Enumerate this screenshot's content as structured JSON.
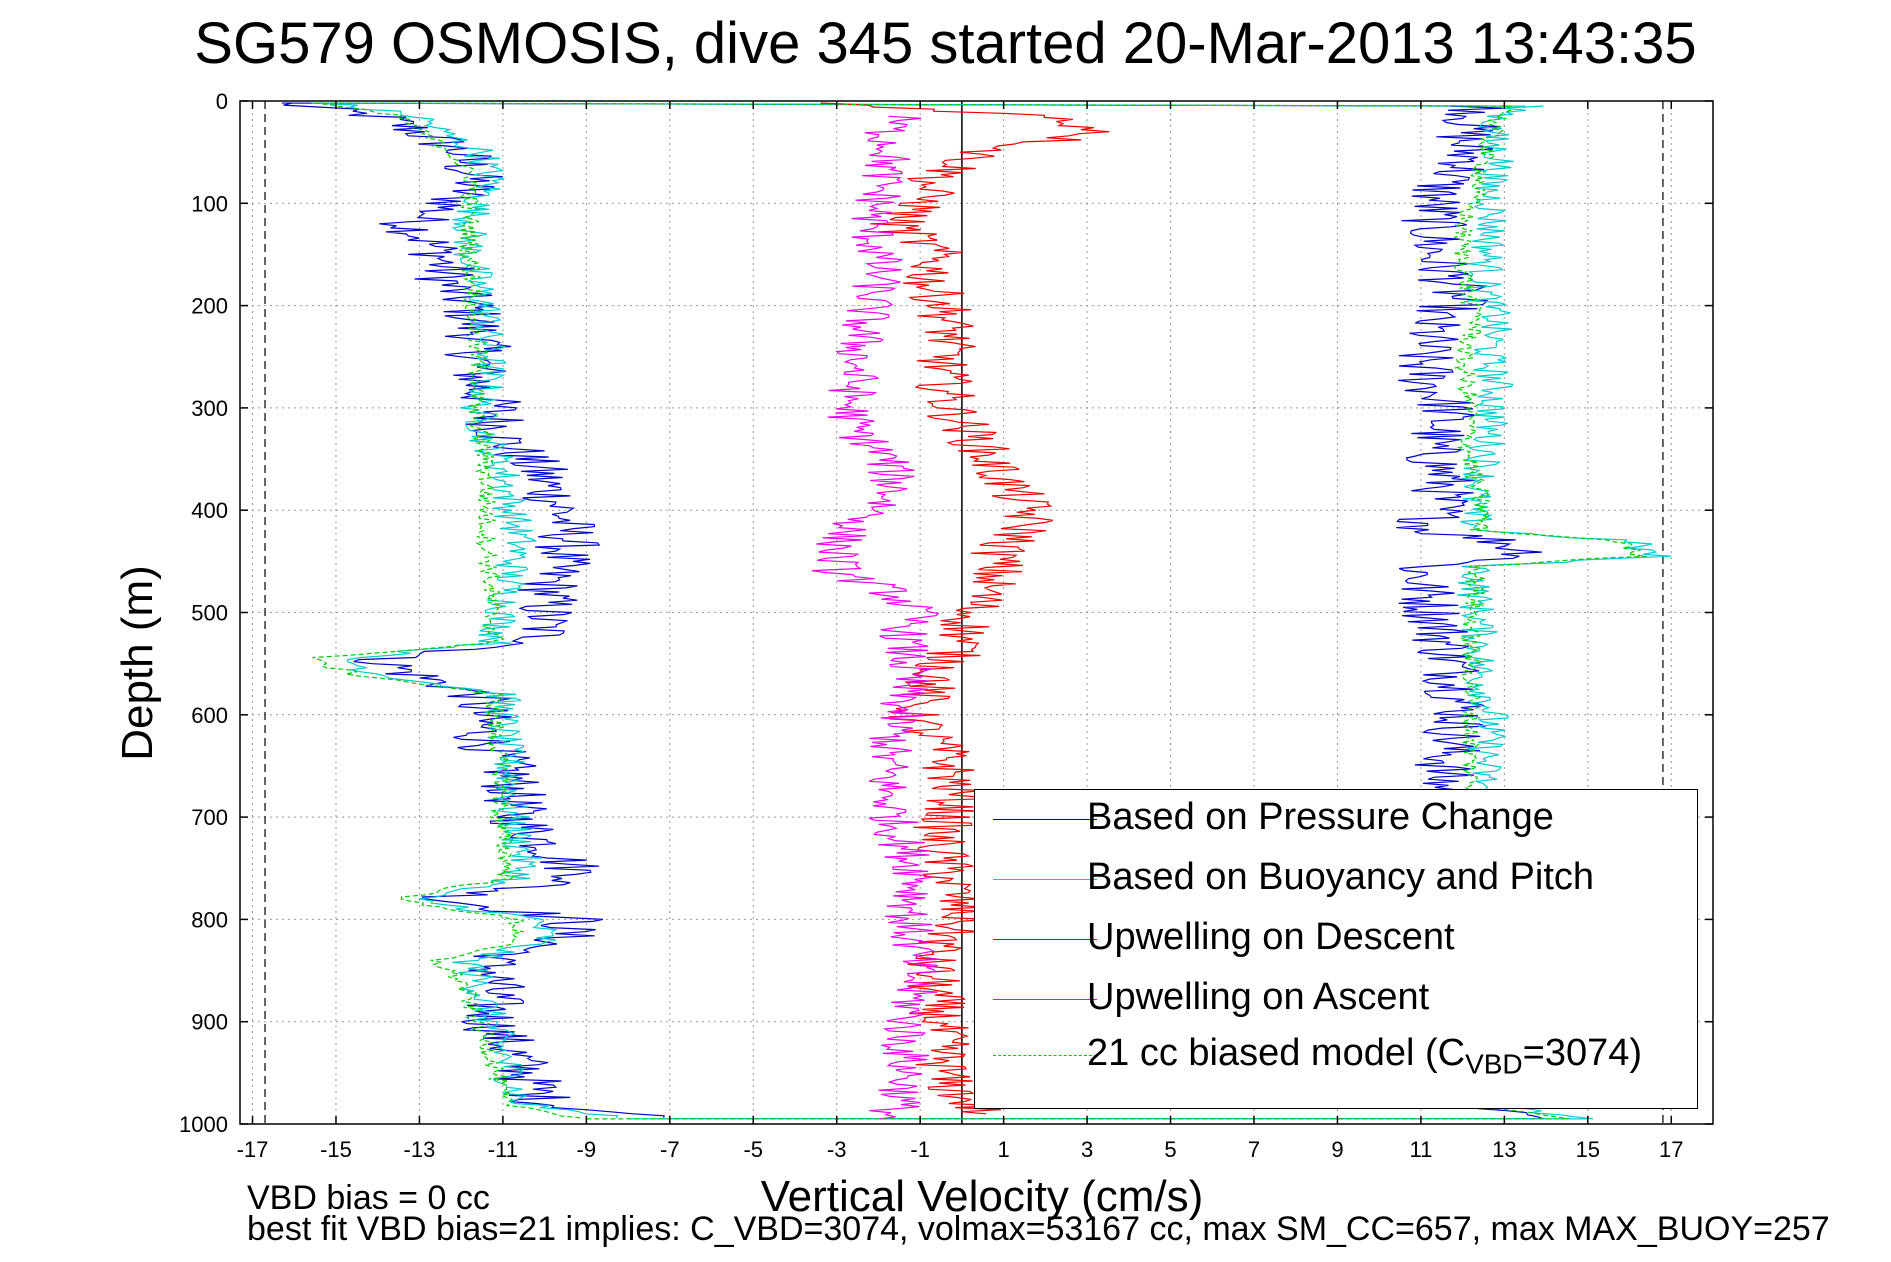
{
  "chart_data": {
    "type": "line",
    "title": "SG579 OSMOSIS, dive 345 started 20-Mar-2013 13:43:35",
    "xlabel": "Vertical Velocity (cm/s)",
    "ylabel": "Depth (m)",
    "xlim": [
      -17.3,
      18.0
    ],
    "ylim": [
      0,
      1000
    ],
    "y_reversed": true,
    "grid": true,
    "x_ticks": [
      -17,
      -15,
      -13,
      -11,
      -9,
      -7,
      -5,
      -3,
      -1,
      1,
      3,
      5,
      7,
      9,
      11,
      13,
      15,
      17
    ],
    "y_ticks": [
      0,
      100,
      200,
      300,
      400,
      500,
      600,
      700,
      800,
      900,
      1000
    ],
    "x_tick_labels": [
      "-17",
      "-15",
      "-13",
      "-11",
      "-9",
      "-7",
      "-5",
      "-3",
      "-1",
      "1",
      "3",
      "5",
      "7",
      "9",
      "11",
      "13",
      "15",
      "17"
    ],
    "y_tick_labels": [
      "0",
      "100",
      "200",
      "300",
      "400",
      "500",
      "600",
      "700",
      "800",
      "900",
      "1000"
    ],
    "reference_lines": {
      "vertical_solid_x": 0,
      "vertical_dashed_x": [
        -16.7,
        16.8
      ]
    },
    "legend_position": "bottom-right",
    "series": [
      {
        "name": "Based on Pressure Change",
        "color": "#0000cc",
        "style": "solid",
        "descent": {
          "depth": [
            2,
            15,
            30,
            50,
            80,
            100,
            120,
            150,
            180,
            200,
            230,
            250,
            280,
            300,
            330,
            360,
            400,
            430,
            460,
            500,
            530,
            545,
            560,
            580,
            620,
            660,
            700,
            740,
            760,
            780,
            800,
            820,
            840,
            860,
            900,
            940,
            980,
            995
          ],
          "velocity": [
            -16.3,
            -14.0,
            -13.0,
            -12.0,
            -11.7,
            -12.2,
            -13.2,
            -12.5,
            -12.3,
            -11.8,
            -11.6,
            -11.6,
            -11.6,
            -11.2,
            -11.0,
            -10.2,
            -9.6,
            -9.4,
            -9.8,
            -10.0,
            -10.1,
            -14.0,
            -13.2,
            -11.6,
            -11.5,
            -10.8,
            -10.7,
            -9.6,
            -9.0,
            -12.5,
            -9.3,
            -9.6,
            -11.3,
            -11.2,
            -11.3,
            -10.6,
            -10.0,
            -7.0
          ]
        },
        "ascent": {
          "depth": [
            995,
            980,
            940,
            900,
            860,
            820,
            780,
            740,
            720,
            700,
            660,
            620,
            600,
            560,
            520,
            480,
            470,
            455,
            445,
            430,
            420,
            400,
            370,
            340,
            300,
            280,
            250,
            230,
            210,
            200,
            180,
            150,
            120,
            100,
            80,
            60,
            40,
            20,
            5
          ],
          "velocity": [
            14.0,
            11.8,
            11.5,
            11.4,
            11.3,
            11.5,
            11.5,
            11.3,
            11.4,
            11.6,
            11.5,
            11.8,
            12.0,
            11.8,
            11.5,
            11.1,
            11.0,
            11.0,
            13.8,
            12.9,
            11.1,
            11.4,
            11.6,
            11.2,
            11.7,
            11.2,
            11.0,
            11.2,
            11.2,
            11.8,
            11.8,
            11.3,
            11.3,
            11.3,
            11.5,
            12.2,
            12.0,
            12.2,
            12.5
          ]
        }
      },
      {
        "name": "Based on Buoyancy and Pitch",
        "color": "#00cccc",
        "style": "solid",
        "descent": {
          "depth": [
            2,
            15,
            30,
            50,
            80,
            100,
            120,
            150,
            180,
            200,
            230,
            250,
            280,
            300,
            330,
            360,
            400,
            430,
            460,
            500,
            530,
            545,
            560,
            580,
            620,
            660,
            700,
            740,
            760,
            780,
            800,
            820,
            840,
            860,
            900,
            940,
            980,
            995
          ],
          "velocity": [
            -15.2,
            -13.0,
            -12.5,
            -11.5,
            -11.3,
            -11.6,
            -11.8,
            -11.8,
            -11.6,
            -11.4,
            -11.4,
            -11.3,
            -11.4,
            -11.6,
            -11.4,
            -11.0,
            -10.8,
            -10.6,
            -10.8,
            -11.0,
            -11.2,
            -14.8,
            -14.0,
            -11.0,
            -11.0,
            -10.8,
            -10.8,
            -10.5,
            -10.6,
            -13.2,
            -10.2,
            -10.0,
            -11.8,
            -11.6,
            -11.3,
            -10.9,
            -10.6,
            -8.0
          ]
        },
        "ascent": {
          "depth": [
            995,
            980,
            940,
            900,
            860,
            820,
            780,
            740,
            720,
            700,
            660,
            620,
            600,
            560,
            520,
            480,
            470,
            455,
            445,
            430,
            420,
            400,
            370,
            340,
            300,
            280,
            250,
            230,
            210,
            200,
            180,
            150,
            120,
            100,
            80,
            60,
            40,
            20,
            5
          ],
          "velocity": [
            15.0,
            12.3,
            12.3,
            12.3,
            12.2,
            12.4,
            12.3,
            12.4,
            12.5,
            12.6,
            12.5,
            12.6,
            12.7,
            12.4,
            12.4,
            12.3,
            12.3,
            12.4,
            16.6,
            16.0,
            12.4,
            12.2,
            12.4,
            12.6,
            12.7,
            12.8,
            12.6,
            12.7,
            12.8,
            12.6,
            12.5,
            12.6,
            12.7,
            12.7,
            12.6,
            12.9,
            12.7,
            12.7,
            13.5
          ]
        }
      },
      {
        "name": "Upwelling on Descent",
        "color": "#ee0000",
        "style": "solid",
        "depth": [
          2,
          15,
          30,
          50,
          80,
          100,
          120,
          150,
          180,
          200,
          230,
          260,
          300,
          330,
          360,
          380,
          400,
          420,
          440,
          460,
          480,
          500,
          530,
          560,
          600,
          640,
          680,
          720,
          760,
          800,
          840,
          880,
          920,
          960,
          990
        ],
        "velocity": [
          -3.2,
          2.0,
          3.5,
          0.5,
          -0.8,
          -0.9,
          -1.6,
          -0.6,
          -0.8,
          -0.4,
          -0.3,
          -0.5,
          -0.3,
          0.3,
          0.8,
          1.2,
          1.6,
          1.5,
          0.9,
          0.8,
          0.6,
          0.2,
          0.0,
          -0.6,
          -1.2,
          -0.4,
          -0.1,
          -0.6,
          -0.3,
          0.0,
          -0.8,
          -0.6,
          -0.5,
          -0.4,
          0.5
        ]
      },
      {
        "name": "Upwelling on Ascent",
        "color": "#ee00ee",
        "style": "solid",
        "depth": [
          995,
          980,
          950,
          920,
          880,
          840,
          800,
          760,
          720,
          680,
          640,
          600,
          560,
          520,
          500,
          480,
          460,
          440,
          420,
          400,
          380,
          350,
          320,
          300,
          280,
          250,
          220,
          200,
          170,
          150,
          120,
          100,
          70,
          50,
          30,
          15
        ],
        "velocity": [
          -1.8,
          -1.5,
          -1.3,
          -1.4,
          -1.2,
          -1.1,
          -1.3,
          -1.0,
          -1.5,
          -1.8,
          -1.8,
          -1.5,
          -1.3,
          -1.4,
          -1.1,
          -1.7,
          -3.0,
          -3.0,
          -2.8,
          -2.0,
          -1.6,
          -1.8,
          -2.6,
          -2.7,
          -2.6,
          -2.5,
          -2.4,
          -2.2,
          -2.0,
          -2.0,
          -2.2,
          -2.0,
          -1.9,
          -1.7,
          -1.8,
          -1.5
        ]
      },
      {
        "name": "21 cc biased model (C_VBD=3074)",
        "color": "#00cc00",
        "style": "dashed",
        "descent": {
          "depth": [
            2,
            15,
            30,
            50,
            80,
            100,
            120,
            150,
            180,
            200,
            230,
            250,
            280,
            300,
            330,
            360,
            400,
            430,
            460,
            500,
            530,
            545,
            560,
            580,
            620,
            660,
            700,
            740,
            760,
            780,
            800,
            820,
            840,
            860,
            900,
            940,
            980,
            995
          ],
          "velocity": [
            -15.5,
            -13.5,
            -13.0,
            -12.2,
            -11.7,
            -11.8,
            -11.8,
            -11.8,
            -11.7,
            -11.7,
            -11.7,
            -11.6,
            -11.6,
            -11.7,
            -11.5,
            -11.4,
            -11.4,
            -11.4,
            -11.3,
            -11.3,
            -11.2,
            -15.7,
            -14.6,
            -11.2,
            -11.2,
            -11.0,
            -11.1,
            -10.9,
            -10.9,
            -13.6,
            -10.7,
            -10.6,
            -12.6,
            -12.0,
            -11.6,
            -11.2,
            -11.0,
            -9.0
          ]
        },
        "ascent": {
          "depth": [
            995,
            980,
            940,
            900,
            860,
            820,
            780,
            740,
            720,
            700,
            660,
            620,
            600,
            560,
            520,
            480,
            470,
            455,
            445,
            430,
            420,
            400,
            370,
            340,
            300,
            280,
            250,
            230,
            210,
            200,
            180,
            150,
            120,
            100,
            80,
            60,
            40,
            20,
            5
          ],
          "velocity": [
            14.5,
            12.0,
            12.0,
            12.0,
            12.1,
            12.1,
            12.1,
            12.1,
            12.1,
            12.2,
            12.2,
            12.2,
            12.2,
            12.2,
            12.2,
            12.3,
            12.3,
            12.4,
            16.2,
            15.8,
            12.4,
            12.5,
            12.3,
            12.1,
            12.2,
            12.1,
            12.0,
            12.2,
            12.4,
            12.2,
            12.1,
            12.0,
            12.0,
            12.2,
            12.4,
            12.5,
            12.6,
            12.8,
            13.2
          ]
        }
      }
    ],
    "legend_entries": [
      "Based on Pressure Change",
      "Based on Buoyancy and Pitch",
      "Upwelling on Descent",
      "Upwelling on Ascent",
      "21 cc biased model (C",
      "VBD",
      "=3074)"
    ],
    "annotations": [
      "VBD bias = 0 cc",
      "best fit VBD bias=21 implies: C_VBD=3074, volmax=53167 cc, max SM_CC=657, max MAX_BUOY=257"
    ]
  }
}
